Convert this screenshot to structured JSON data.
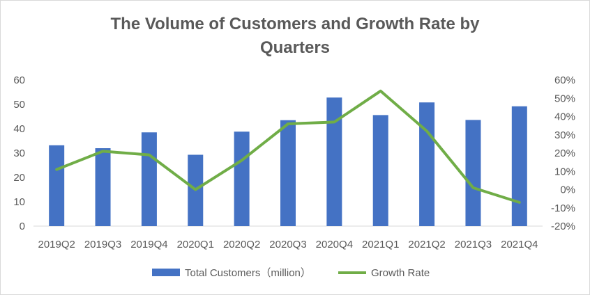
{
  "chart_data": {
    "type": "bar+line",
    "title_lines": [
      "The Volume of  Customers and Growth Rate by",
      "Quarters"
    ],
    "categories": [
      "2019Q2",
      "2019Q3",
      "2019Q4",
      "2020Q1",
      "2020Q2",
      "2020Q3",
      "2020Q4",
      "2021Q1",
      "2021Q2",
      "2021Q3",
      "2021Q4"
    ],
    "series": [
      {
        "name": "Total Customers（million）",
        "type": "bar",
        "axis": "left",
        "color": "#4472c4",
        "values": [
          33.2,
          32.0,
          38.5,
          29.3,
          38.8,
          43.5,
          52.8,
          45.6,
          50.8,
          43.6,
          49.2
        ]
      },
      {
        "name": "Growth Rate",
        "type": "line",
        "axis": "right",
        "color": "#70ad47",
        "values": [
          11,
          21,
          19,
          0,
          16,
          36,
          37,
          54,
          32,
          1,
          -7
        ]
      }
    ],
    "y_left": {
      "min": 0,
      "max": 60,
      "step": 10,
      "ticks": [
        "0",
        "10",
        "20",
        "30",
        "40",
        "50",
        "60"
      ]
    },
    "y_right": {
      "min": -20,
      "max": 60,
      "step": 10,
      "ticks": [
        "-20%",
        "-10%",
        "0%",
        "10%",
        "20%",
        "30%",
        "40%",
        "50%",
        "60%"
      ]
    },
    "grid": false,
    "legend": "bottom"
  }
}
